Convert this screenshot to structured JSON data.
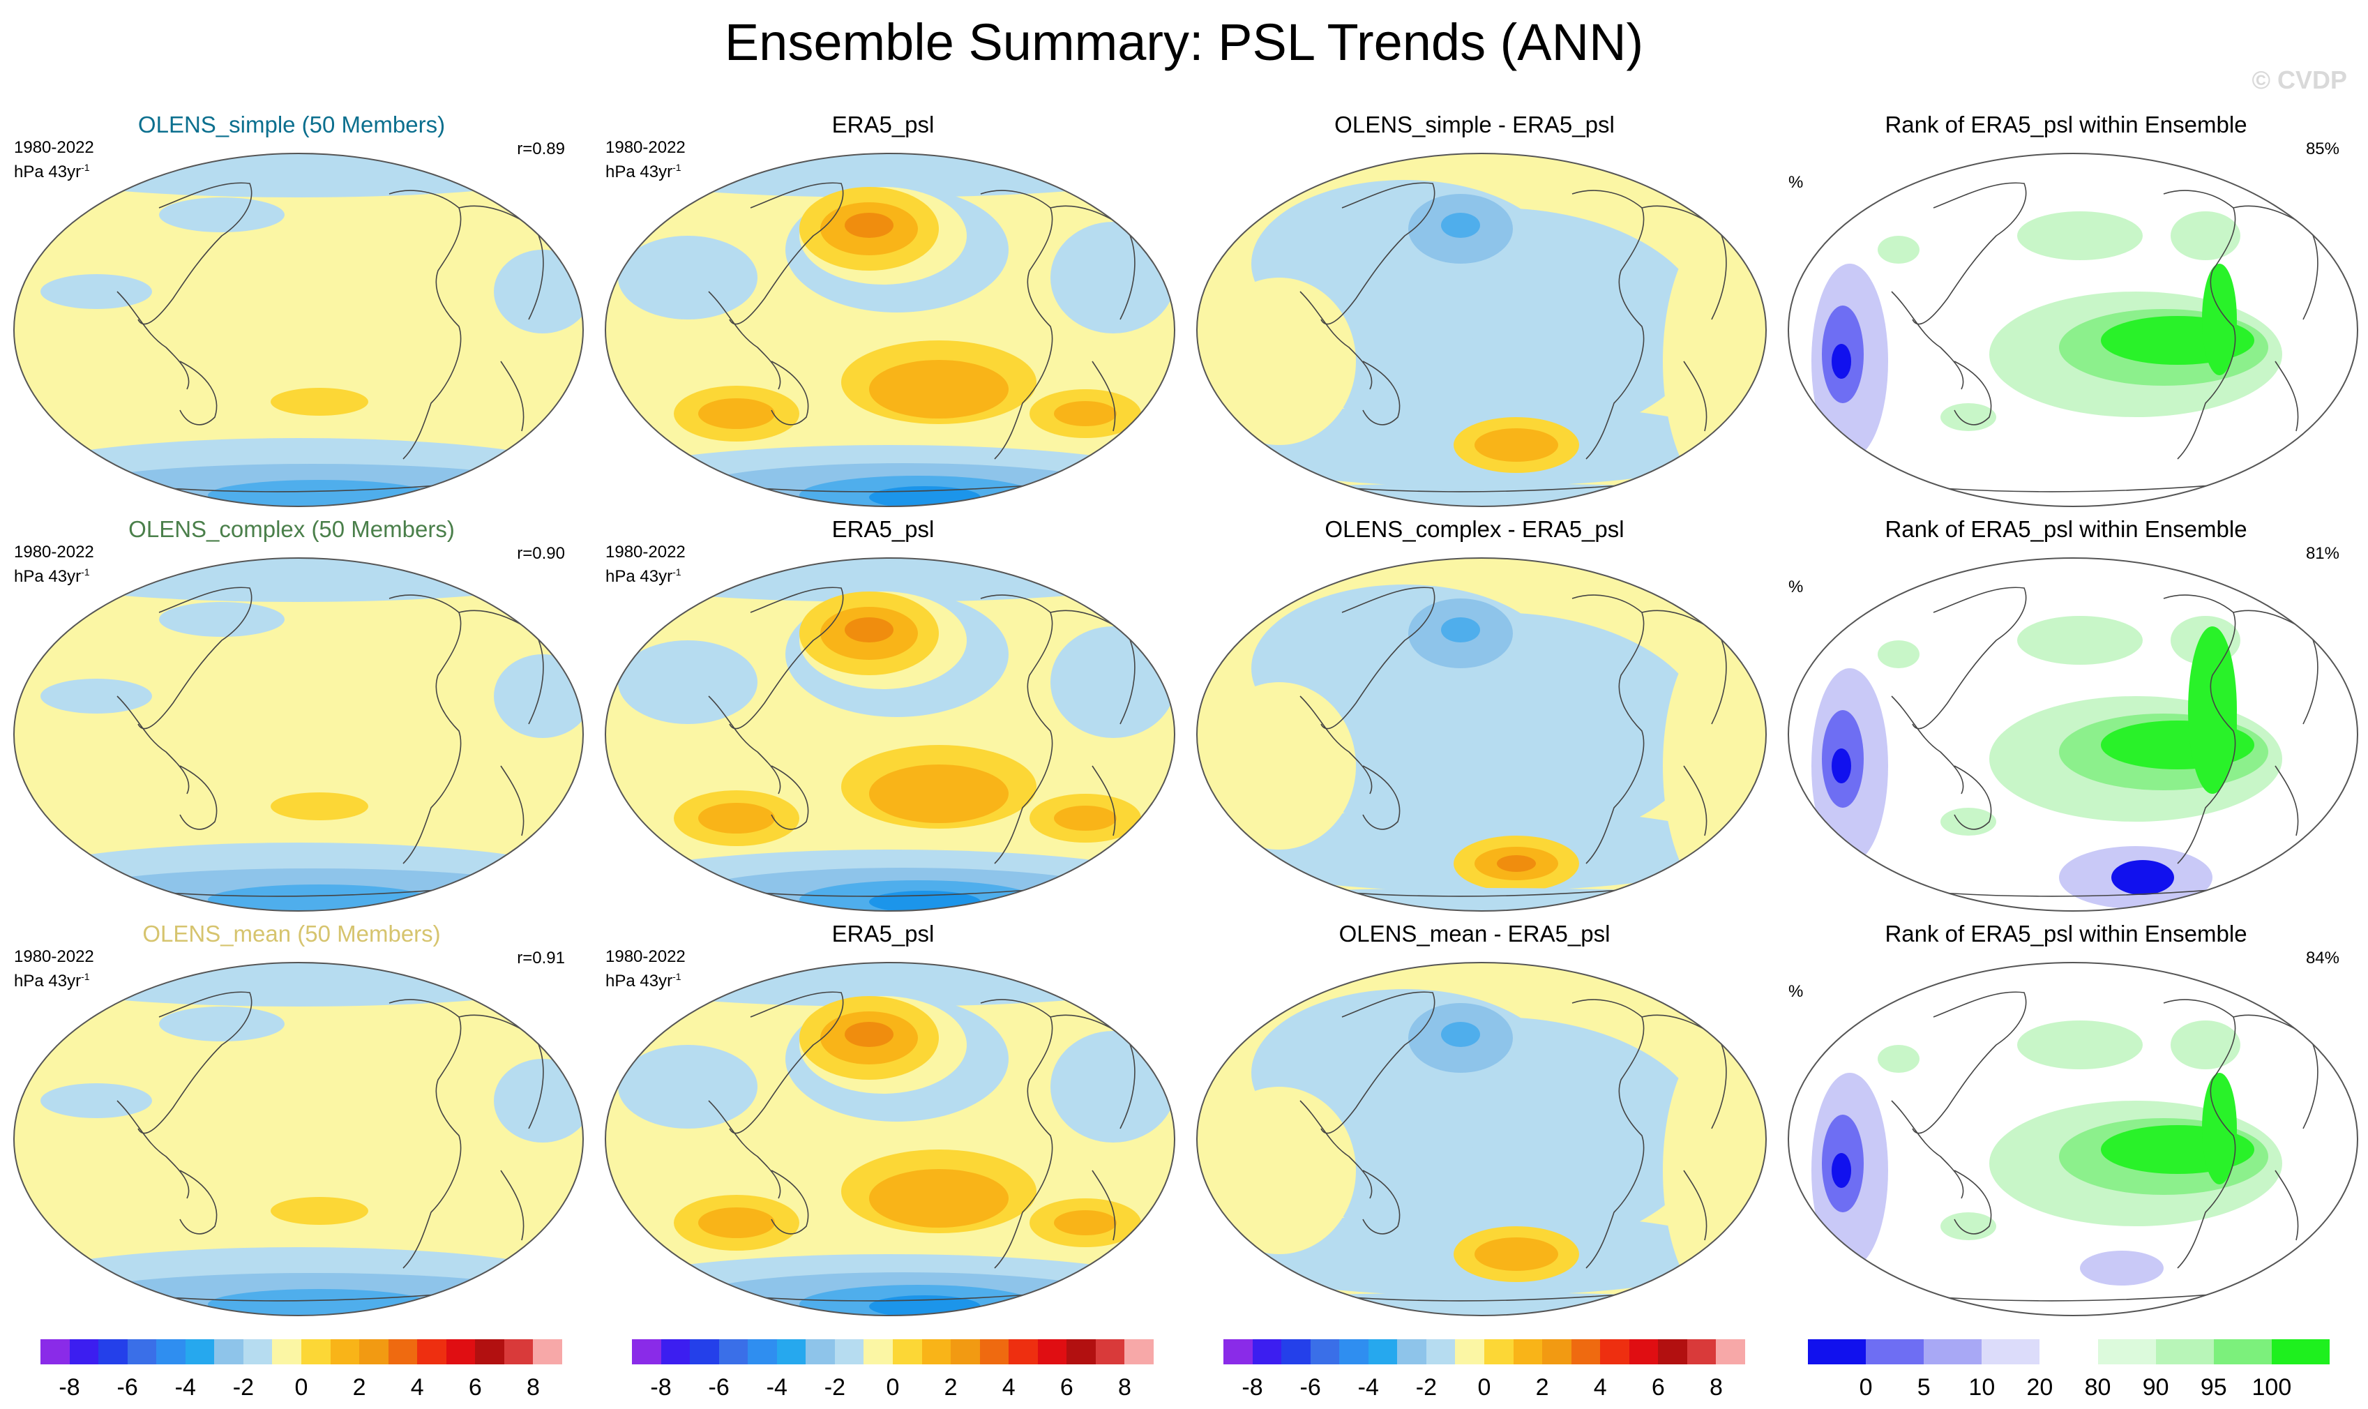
{
  "title": "Ensemble Summary: PSL Trends (ANN)",
  "watermark": "© CVDP",
  "colors": {
    "ocean_yellow": "#fbf6a4",
    "light_blue": "#b6dcf0",
    "mid_blue": "#8ec4ea",
    "blue": "#4faeec",
    "deep_blue": "#1c95ea",
    "orange_light": "#fcd736",
    "orange": "#f9b418",
    "orange_dark": "#f08d0e",
    "rank_green": "#29f229",
    "rank_light_green": "#c8f6c8",
    "rank_blue": "#1111ee",
    "rank_light_blue": "#c9c9f7"
  },
  "rows": [
    {
      "model": {
        "title": "OLENS_simple (50 Members)",
        "title_color": "#0b6f8e",
        "period": "1980-2022",
        "units": "hPa 43yr",
        "units_exp": "-1",
        "r": "r=0.89"
      },
      "obs": {
        "title": "ERA5_psl",
        "period": "1980-2022",
        "units": "hPa 43yr",
        "units_exp": "-1"
      },
      "diff": {
        "title": "OLENS_simple - ERA5_psl"
      },
      "rank": {
        "title": "Rank of ERA5_psl within Ensemble",
        "unit": "%",
        "pct": "85%"
      }
    },
    {
      "model": {
        "title": "OLENS_complex (50 Members)",
        "title_color": "#4a7f4a",
        "period": "1980-2022",
        "units": "hPa 43yr",
        "units_exp": "-1",
        "r": "r=0.90"
      },
      "obs": {
        "title": "ERA5_psl",
        "period": "1980-2022",
        "units": "hPa 43yr",
        "units_exp": "-1"
      },
      "diff": {
        "title": "OLENS_complex - ERA5_psl"
      },
      "rank": {
        "title": "Rank of ERA5_psl within Ensemble",
        "unit": "%",
        "pct": "81%"
      }
    },
    {
      "model": {
        "title": "OLENS_mean (50 Members)",
        "title_color": "#d6c46e",
        "period": "1980-2022",
        "units": "hPa 43yr",
        "units_exp": "-1",
        "r": "r=0.91"
      },
      "obs": {
        "title": "ERA5_psl",
        "period": "1980-2022",
        "units": "hPa 43yr",
        "units_exp": "-1"
      },
      "diff": {
        "title": "OLENS_mean - ERA5_psl"
      },
      "rank": {
        "title": "Rank of ERA5_psl within Ensemble",
        "unit": "%",
        "pct": "84%"
      }
    }
  ],
  "colorbar_trend": {
    "colors": [
      "#8a2be8",
      "#3c1ef0",
      "#2440ea",
      "#3a6fe8",
      "#2f8ef0",
      "#26a8ee",
      "#8ec4ea",
      "#b6dcf0",
      "#fbf6a4",
      "#fcd736",
      "#f9b418",
      "#f29a12",
      "#ef6a10",
      "#ee2f10",
      "#e00e12",
      "#b21010",
      "#d93a3a",
      "#f7a8a8"
    ],
    "labels": [
      "-8",
      "-6",
      "-4",
      "-2",
      "0",
      "2",
      "4",
      "6",
      "8"
    ]
  },
  "colorbar_rank": {
    "colors": [
      "#1111ee",
      "#6e6ef3",
      "#a8a8f5",
      "#dcdcfa",
      "#ffffff",
      "#dcfadc",
      "#b8f5b8",
      "#7cf07c",
      "#1ef01e"
    ],
    "labels": [
      "0",
      "5",
      "10",
      "20",
      "80",
      "90",
      "95",
      "100"
    ]
  }
}
